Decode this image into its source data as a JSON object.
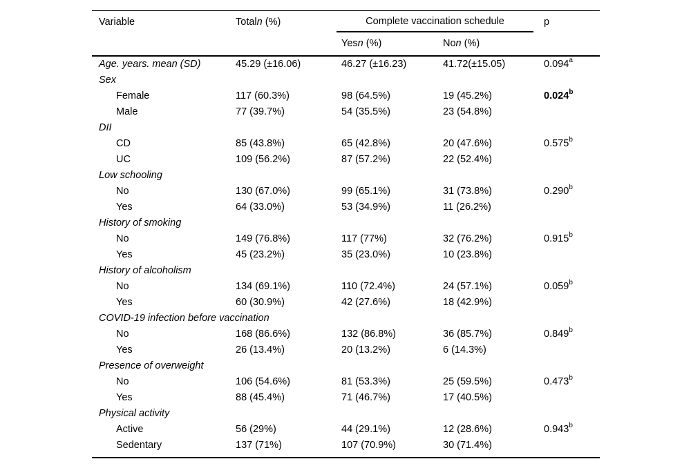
{
  "colors": {
    "text": "#000000",
    "background": "#ffffff",
    "rule": "#000000"
  },
  "table": {
    "columns": {
      "variable": "Variable",
      "total": {
        "prefix": "Total",
        "n": "n",
        "suffix": " (%)"
      },
      "group_header": "Complete vaccination schedule",
      "yes": {
        "prefix": "Yes",
        "n": "n",
        "suffix": " (%)"
      },
      "no": {
        "prefix": "No",
        "n": "n",
        "suffix": " (%)"
      },
      "p": "p"
    },
    "rows": [
      {
        "label": "Age. years. mean (SD)",
        "italic": true,
        "indent": false,
        "total": "45.29 (±16.06)",
        "yes": "46.27 (±16.23)",
        "no": "41.72(±15.05)",
        "p": "0.094",
        "p_sup": "a",
        "p_bold": false
      },
      {
        "label": "Sex",
        "italic": true,
        "indent": false
      },
      {
        "label": "Female",
        "italic": false,
        "indent": true,
        "total": "117 (60.3%)",
        "yes": "98 (64.5%)",
        "no": "19 (45.2%)",
        "p": "0.024",
        "p_sup": "b",
        "p_bold": true
      },
      {
        "label": "Male",
        "italic": false,
        "indent": true,
        "total": "77 (39.7%)",
        "yes": "54 (35.5%)",
        "no": "23 (54.8%)"
      },
      {
        "label": "DII",
        "italic": true,
        "indent": false
      },
      {
        "label": "CD",
        "italic": false,
        "indent": true,
        "total": "85 (43.8%)",
        "yes": "65 (42.8%)",
        "no": "20 (47.6%)",
        "p": "0.575",
        "p_sup": "b",
        "p_bold": false
      },
      {
        "label": "UC",
        "italic": false,
        "indent": true,
        "total": "109 (56.2%)",
        "yes": "87 (57.2%)",
        "no": "22 (52.4%)"
      },
      {
        "label": "Low schooling",
        "italic": true,
        "indent": false
      },
      {
        "label": "No",
        "italic": false,
        "indent": true,
        "total": "130 (67.0%)",
        "yes": "99 (65.1%)",
        "no": "31 (73.8%)",
        "p": "0.290",
        "p_sup": "b",
        "p_bold": false
      },
      {
        "label": "Yes",
        "italic": false,
        "indent": true,
        "total": "64 (33.0%)",
        "yes": "53 (34.9%)",
        "no": "11 (26.2%)"
      },
      {
        "label": "History of smoking",
        "italic": true,
        "indent": false
      },
      {
        "label": "No",
        "italic": false,
        "indent": true,
        "total": "149 (76.8%)",
        "yes": "117 (77%)",
        "no": "32 (76.2%)",
        "p": "0.915",
        "p_sup": "b",
        "p_bold": false
      },
      {
        "label": "Yes",
        "italic": false,
        "indent": true,
        "total": "45 (23.2%)",
        "yes": "35 (23.0%)",
        "no": "10 (23.8%)"
      },
      {
        "label": "History of alcoholism",
        "italic": true,
        "indent": false
      },
      {
        "label": "No",
        "italic": false,
        "indent": true,
        "total": "134 (69.1%)",
        "yes": "110 (72.4%)",
        "no": "24 (57.1%)",
        "p": "0.059",
        "p_sup": "b",
        "p_bold": false
      },
      {
        "label": "Yes",
        "italic": false,
        "indent": true,
        "total": "60 (30.9%)",
        "yes": "42 (27.6%)",
        "no": "18 (42.9%)"
      },
      {
        "label": "COVID-19 infection before vaccination",
        "italic": true,
        "indent": false
      },
      {
        "label": "No",
        "italic": false,
        "indent": true,
        "total": "168 (86.6%)",
        "yes": "132 (86.8%)",
        "no": "36 (85.7%)",
        "p": "0.849",
        "p_sup": "b",
        "p_bold": false
      },
      {
        "label": "Yes",
        "italic": false,
        "indent": true,
        "total": "26 (13.4%)",
        "yes": "20 (13.2%)",
        "no": "6 (14.3%)"
      },
      {
        "label": "Presence of overweight",
        "italic": true,
        "indent": false
      },
      {
        "label": "No",
        "italic": false,
        "indent": true,
        "total": "106 (54.6%)",
        "yes": "81 (53.3%)",
        "no": "25 (59.5%)",
        "p": "0.473",
        "p_sup": "b",
        "p_bold": false
      },
      {
        "label": "Yes",
        "italic": false,
        "indent": true,
        "total": "88 (45.4%)",
        "yes": "71 (46.7%)",
        "no": "17 (40.5%)"
      },
      {
        "label": "Physical activity",
        "italic": true,
        "indent": false
      },
      {
        "label": "Active",
        "italic": false,
        "indent": true,
        "total": "56 (29%)",
        "yes": "44 (29.1%)",
        "no": "12 (28.6%)",
        "p": "0.943",
        "p_sup": "b",
        "p_bold": false
      },
      {
        "label": "Sedentary",
        "italic": false,
        "indent": true,
        "total": "137 (71%)",
        "yes": "107 (70.9%)",
        "no": "30 (71.4%)"
      }
    ]
  }
}
